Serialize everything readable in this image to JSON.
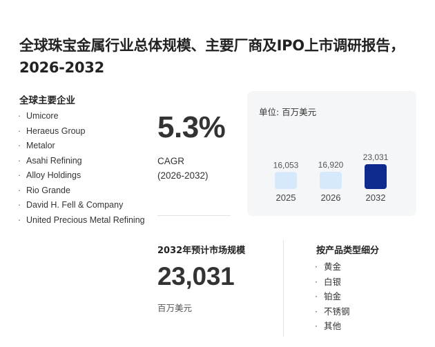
{
  "report": {
    "title": "全球珠宝金属行业总体规模、主要厂商及IPO上市调研报告，2026-2032"
  },
  "companies": {
    "heading": "全球主要企业",
    "items": [
      "Umicore",
      "Heraeus Group",
      "Metalor",
      "Asahi Refining",
      "Alloy Holdings",
      "Rio Grande",
      "David H. Fell & Company",
      "United Precious Metal Refining"
    ]
  },
  "cagr": {
    "value": "5.3%",
    "label": "CAGR",
    "period": "(2026-2032)"
  },
  "chart_card": {
    "unit_label": "单位: 百万美元"
  },
  "chart_data": {
    "type": "bar",
    "categories": [
      "2025",
      "2026",
      "2032"
    ],
    "values": [
      16053,
      16920,
      23031
    ],
    "value_labels": [
      "16,053",
      "16,920",
      "23,031"
    ],
    "ylabel": "单位: 百万美元",
    "colors": [
      "#d6e8fb",
      "#d6e8fb",
      "#0d2a8c"
    ],
    "grid": false
  },
  "market": {
    "heading": "2032年预计市场规模",
    "value": "23,031",
    "unit": "百万美元"
  },
  "segments": {
    "heading": "按产品类型细分",
    "items": [
      "黄金",
      "白银",
      "铂金",
      "不锈钢",
      "其他"
    ]
  }
}
